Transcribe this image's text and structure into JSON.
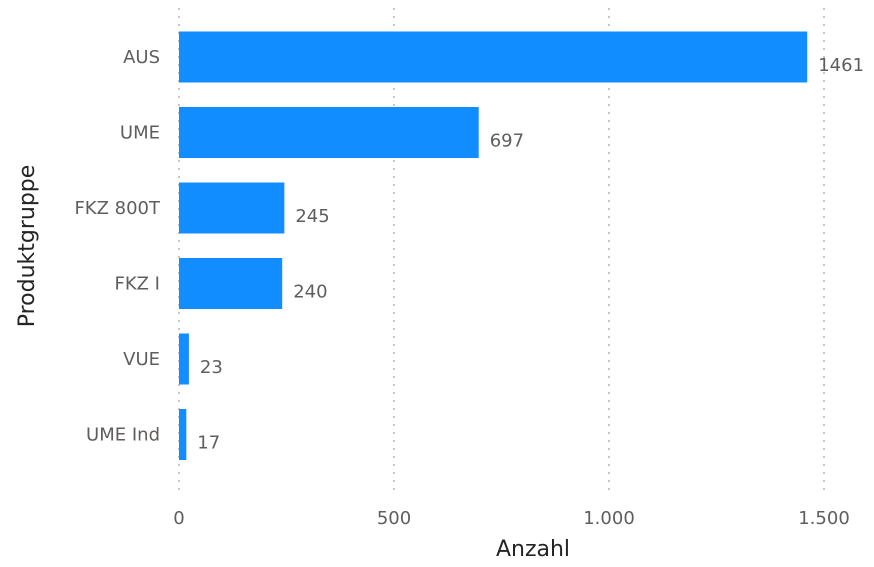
{
  "chart_data": {
    "type": "bar",
    "orientation": "horizontal",
    "categories": [
      "AUS",
      "UME",
      "FKZ 800T",
      "FKZ I",
      "VUE",
      "UME Ind"
    ],
    "values": [
      1461,
      697,
      245,
      240,
      23,
      17
    ],
    "data_labels": [
      "1461",
      "697",
      "245",
      "240",
      "23",
      "17"
    ],
    "xlabel": "Anzahl",
    "ylabel": "Produktgruppe",
    "xlim": [
      0,
      1500
    ],
    "x_ticks": [
      0,
      500,
      1000,
      1500
    ],
    "x_tick_labels": [
      "0",
      "500",
      "1.000",
      "1.500"
    ],
    "grid": true,
    "bar_color": "#118DFF"
  }
}
